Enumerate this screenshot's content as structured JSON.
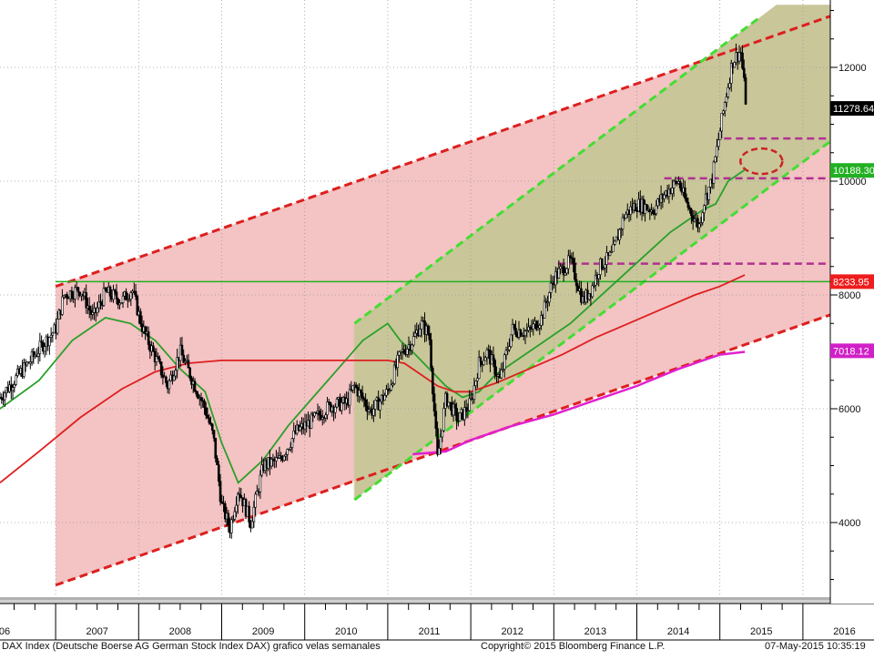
{
  "chart_data": {
    "type": "line",
    "title": "",
    "xlabel": "",
    "ylabel": "",
    "x_ticks": [
      "06",
      "2007",
      "2008",
      "2009",
      "2010",
      "2011",
      "2012",
      "2013",
      "2014",
      "2015",
      "2016"
    ],
    "y_ticks": [
      4000,
      6000,
      8000,
      10000,
      12000
    ],
    "ylim": [
      2850,
      13100
    ],
    "xlim": [
      2006.33,
      2016.33
    ],
    "grid": true,
    "price_labels": [
      {
        "value": 11278.64,
        "label": "11278.64",
        "color": "#000000"
      },
      {
        "value": 10188.3,
        "label": "10188.30",
        "color": "#22b022"
      },
      {
        "value": 8233.95,
        "label": "8233.95",
        "color": "#ee1c1c"
      },
      {
        "value": 7018.12,
        "label": "7018.12",
        "color": "#d020c8"
      }
    ],
    "series": [
      {
        "type": "candlestick-weekly",
        "color": "#000000",
        "x": [
          2006.33,
          2006.5,
          2006.67,
          2006.83,
          2007.0,
          2007.1,
          2007.3,
          2007.45,
          2007.6,
          2007.8,
          2007.92,
          2008.05,
          2008.2,
          2008.35,
          2008.5,
          2008.65,
          2008.8,
          2008.9,
          2009.0,
          2009.1,
          2009.2,
          2009.35,
          2009.5,
          2009.7,
          2009.9,
          2010.1,
          2010.3,
          2010.5,
          2010.6,
          2010.8,
          2011.0,
          2011.15,
          2011.3,
          2011.4,
          2011.5,
          2011.6,
          2011.7,
          2011.85,
          2012.0,
          2012.1,
          2012.2,
          2012.35,
          2012.5,
          2012.7,
          2012.85,
          2013.0,
          2013.2,
          2013.35,
          2013.45,
          2013.55,
          2013.7,
          2013.85,
          2014.0,
          2014.2,
          2014.35,
          2014.5,
          2014.6,
          2014.75,
          2014.8,
          2014.9,
          2015.05,
          2015.15,
          2015.25,
          2015.32
        ],
        "values": [
          6200,
          6500,
          6800,
          7100,
          7400,
          8000,
          8100,
          7600,
          8050,
          7900,
          8100,
          7400,
          6900,
          6400,
          7000,
          6500,
          6000,
          5500,
          4300,
          3900,
          4600,
          4000,
          5000,
          5100,
          5600,
          5800,
          6050,
          6100,
          6400,
          5950,
          6300,
          6950,
          7200,
          7500,
          7300,
          5100,
          6200,
          5800,
          6100,
          6800,
          7000,
          6500,
          7400,
          7350,
          7600,
          8300,
          8600,
          7900,
          8100,
          8500,
          8700,
          9400,
          9600,
          9500,
          9800,
          10000,
          9600,
          9200,
          9600,
          10000,
          11300,
          12100,
          12300,
          11300
        ]
      },
      {
        "name": "",
        "type": "moving-average",
        "color": "#2aa02a",
        "x": [
          2006.33,
          2006.8,
          2007.2,
          2007.6,
          2007.9,
          2008.2,
          2008.5,
          2008.8,
          2009.0,
          2009.2,
          2009.5,
          2009.8,
          2010.1,
          2010.4,
          2010.7,
          2011.0,
          2011.15,
          2011.3,
          2011.5,
          2011.7,
          2011.9,
          2012.1,
          2012.3,
          2012.6,
          2012.9,
          2013.2,
          2013.5,
          2013.8,
          2014.1,
          2014.4,
          2014.6,
          2014.8,
          2014.95,
          2015.1,
          2015.3
        ],
        "values": [
          6000,
          6500,
          7200,
          7600,
          7500,
          7200,
          6700,
          6300,
          5400,
          4700,
          5100,
          5700,
          6200,
          6700,
          7200,
          7500,
          7200,
          7000,
          6700,
          6400,
          6200,
          6300,
          6600,
          6900,
          7200,
          7500,
          7900,
          8300,
          8700,
          9100,
          9300,
          9500,
          9600,
          10000,
          10200
        ]
      },
      {
        "name": "",
        "type": "moving-average",
        "color": "#dd1f1f",
        "x": [
          2006.33,
          2006.8,
          2007.3,
          2007.8,
          2008.2,
          2008.6,
          2009.0,
          2009.5,
          2010.0,
          2010.5,
          2011.0,
          2011.2,
          2011.4,
          2011.6,
          2011.8,
          2012.0,
          2012.3,
          2012.7,
          2013.1,
          2013.5,
          2013.9,
          2014.3,
          2014.7,
          2015.0,
          2015.3
        ],
        "values": [
          4700,
          5250,
          5850,
          6350,
          6650,
          6800,
          6850,
          6850,
          6850,
          6850,
          6850,
          6800,
          6600,
          6400,
          6300,
          6300,
          6450,
          6700,
          6950,
          7250,
          7500,
          7750,
          8000,
          8150,
          8350
        ]
      },
      {
        "name": "",
        "type": "moving-average",
        "color": "#e020d0",
        "x": [
          2011.3,
          2011.7,
          2012.0,
          2012.5,
          2013.0,
          2013.5,
          2014.0,
          2014.5,
          2015.0,
          2015.3
        ],
        "values": [
          5200,
          5250,
          5450,
          5700,
          5900,
          6150,
          6400,
          6700,
          6950,
          7000
        ]
      }
    ],
    "annotations": [
      {
        "type": "trend-channel",
        "color": "#dd1f1f",
        "style": "dashed",
        "upper": [
          [
            2007.0,
            8150
          ],
          [
            2016.33,
            12900
          ]
        ],
        "lower": [
          [
            2007.0,
            2900
          ],
          [
            2016.33,
            7650
          ]
        ]
      },
      {
        "type": "trend-channel",
        "color": "#44dd33",
        "style": "dashed",
        "upper": [
          [
            2010.6,
            7500
          ],
          [
            2015.5,
            12900
          ]
        ],
        "lower": [
          [
            2010.6,
            4400
          ],
          [
            2016.33,
            10700
          ]
        ]
      },
      {
        "type": "horizontal-line",
        "color": "#22b022",
        "style": "solid",
        "value": 8233.95,
        "from": 2007.0
      },
      {
        "type": "horizontal-line",
        "color": "#b03090",
        "style": "dashed",
        "value": 10750,
        "from": 2015.05
      },
      {
        "type": "horizontal-line",
        "color": "#b03090",
        "style": "dashed",
        "value": 10050,
        "from": 2014.33
      },
      {
        "type": "horizontal-line",
        "color": "#b03090",
        "style": "dashed",
        "value": 8550,
        "from": 2013.05
      },
      {
        "type": "ellipse",
        "color": "#cc2222",
        "style": "dashed",
        "center": [
          2015.5,
          10350
        ]
      }
    ]
  },
  "footer": {
    "description": "DAX Index (Deutsche Boerse AG German Stock Index DAX) grafico velas semanales",
    "copyright": "Copyright© 2015 Bloomberg Finance L.P.",
    "timestamp": "07-May-2015 10:35:19"
  }
}
